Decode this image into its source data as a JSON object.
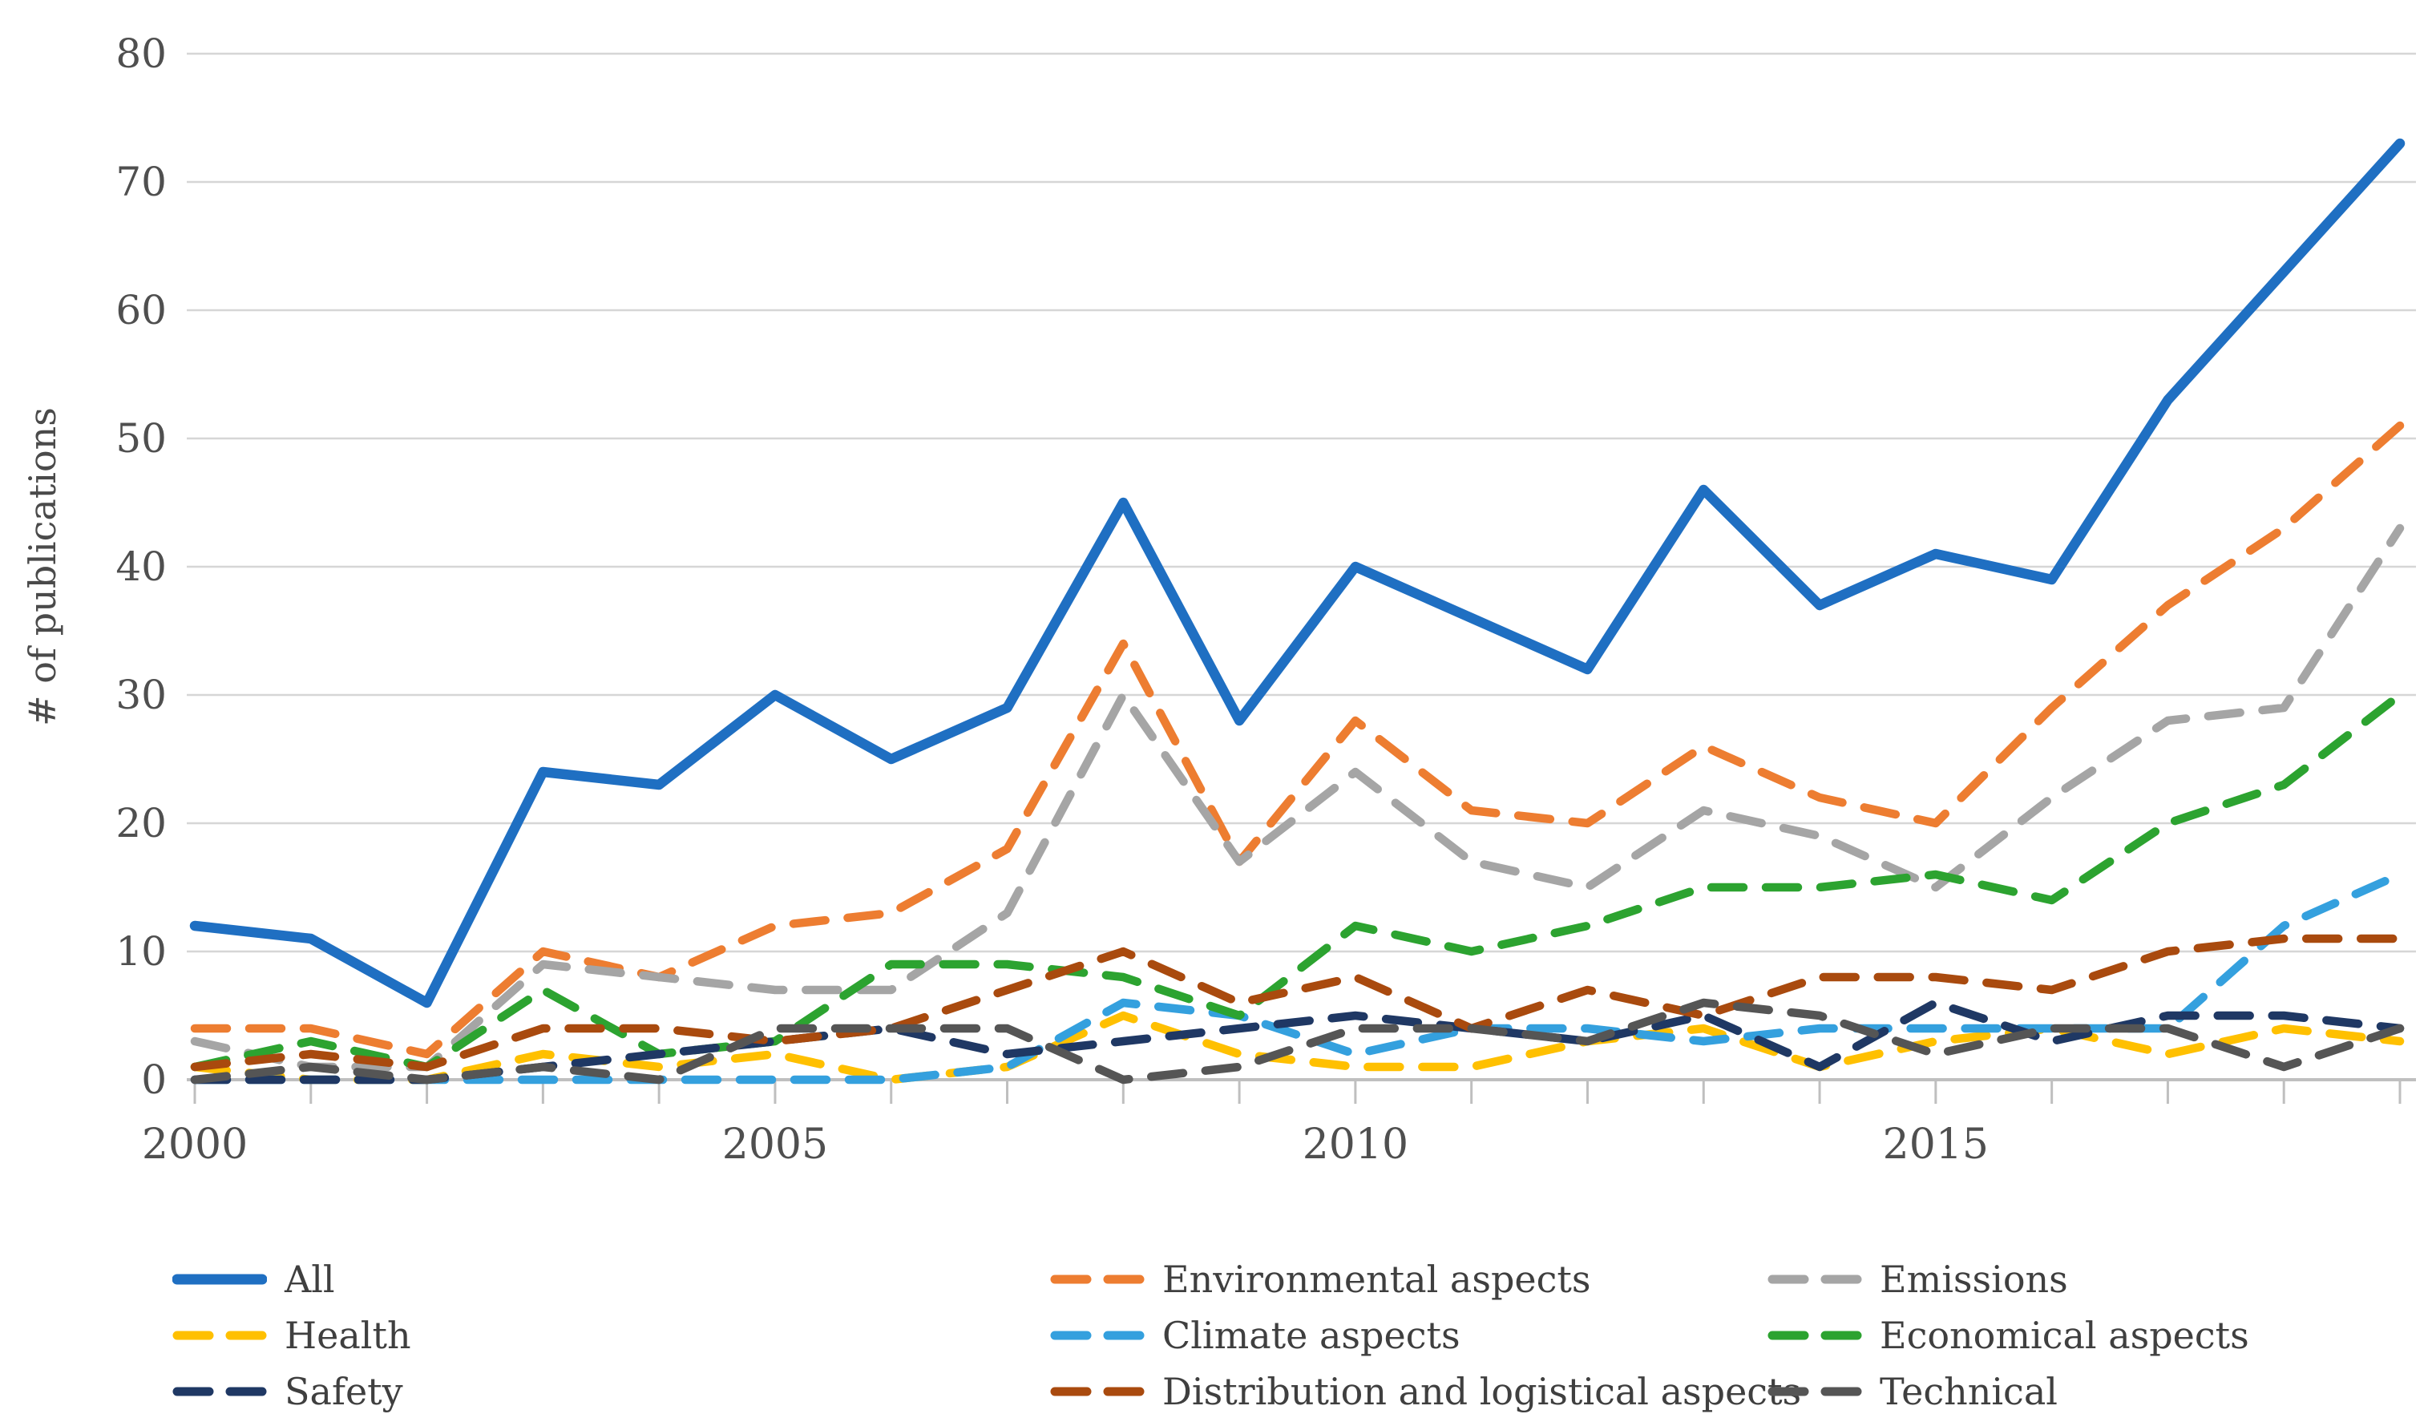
{
  "chart": {
    "y_axis": {
      "title": "# of publications",
      "ticks": [
        0,
        10,
        20,
        30,
        40,
        50,
        60,
        70,
        80
      ]
    },
    "x_axis": {
      "labels": [
        {
          "text": "2000",
          "index": 0
        },
        {
          "text": "2005",
          "index": 5
        },
        {
          "text": "2010",
          "index": 10
        },
        {
          "text": "2015",
          "index": 15
        }
      ]
    }
  },
  "chart_data": {
    "type": "line",
    "title": "",
    "xlabel": "",
    "ylabel": "# of publications",
    "ylim": [
      0,
      80
    ],
    "grid": true,
    "legend_position": "bottom",
    "x": [
      2000,
      2001,
      2002,
      2003,
      2004,
      2005,
      2006,
      2007,
      2008,
      2009,
      2010,
      2011,
      2012,
      2013,
      2014,
      2015,
      2016,
      2017,
      2018,
      2019
    ],
    "series": [
      {
        "name": "All",
        "color": "#1F6FC2",
        "dashed": false,
        "values": [
          12,
          11,
          6,
          24,
          23,
          30,
          25,
          29,
          45,
          28,
          40,
          36,
          32,
          46,
          37,
          41,
          39,
          53,
          63,
          73
        ]
      },
      {
        "name": "Environmental aspects",
        "color": "#ED7D31",
        "dashed": true,
        "values": [
          4,
          4,
          2,
          10,
          8,
          12,
          13,
          18,
          34,
          17,
          28,
          21,
          20,
          26,
          22,
          20,
          29,
          37,
          43,
          51
        ]
      },
      {
        "name": "Emissions",
        "color": "#A5A5A5",
        "dashed": true,
        "values": [
          3,
          1,
          1,
          9,
          8,
          7,
          7,
          13,
          30,
          17,
          24,
          17,
          15,
          21,
          19,
          15,
          22,
          28,
          29,
          43
        ]
      },
      {
        "name": "Health",
        "color": "#FFC000",
        "dashed": true,
        "values": [
          1,
          0,
          0,
          2,
          1,
          2,
          0,
          1,
          5,
          2,
          1,
          1,
          3,
          4,
          1,
          3,
          4,
          2,
          4,
          3
        ]
      },
      {
        "name": "Climate aspects",
        "color": "#34A0DE",
        "dashed": true,
        "values": [
          0,
          0,
          0,
          0,
          0,
          0,
          0,
          1,
          6,
          5,
          2,
          4,
          4,
          3,
          4,
          4,
          4,
          4,
          12,
          16
        ]
      },
      {
        "name": "Economical aspects",
        "color": "#2CA330",
        "dashed": true,
        "values": [
          1,
          3,
          1,
          7,
          2,
          3,
          9,
          9,
          8,
          5,
          12,
          10,
          12,
          15,
          15,
          16,
          14,
          20,
          23,
          30
        ]
      },
      {
        "name": "Safety",
        "color": "#1F3864",
        "dashed": true,
        "values": [
          0,
          0,
          0,
          1,
          2,
          3,
          4,
          2,
          3,
          4,
          5,
          4,
          3,
          5,
          1,
          6,
          3,
          5,
          5,
          4
        ]
      },
      {
        "name": "Distribution and logistical aspects",
        "color": "#A94A0E",
        "dashed": true,
        "values": [
          1,
          2,
          1,
          4,
          4,
          3,
          4,
          7,
          10,
          6,
          8,
          4,
          7,
          5,
          8,
          8,
          7,
          10,
          11,
          11
        ]
      },
      {
        "name": "Technical",
        "color": "#555555",
        "dashed": true,
        "values": [
          0,
          1,
          0,
          1,
          0,
          4,
          4,
          4,
          0,
          1,
          4,
          4,
          3,
          6,
          5,
          2,
          4,
          4,
          1,
          4
        ]
      }
    ]
  },
  "legend": {
    "columns": [
      [
        "All",
        "Health",
        "Safety"
      ],
      [
        "Environmental aspects",
        "Climate aspects",
        "Distribution and logistical aspects"
      ],
      [
        "Emissions",
        "Economical aspects",
        "Technical"
      ]
    ]
  }
}
